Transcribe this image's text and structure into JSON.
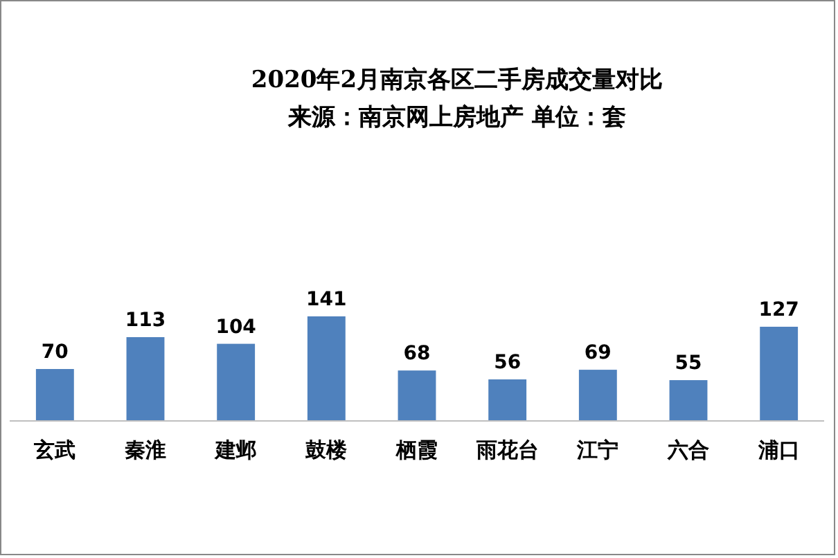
{
  "chart_data": {
    "type": "bar",
    "title": "2020年2月南京各区二手房成交量对比",
    "subtitle": "来源：南京网上房地产 单位：套",
    "categories": [
      "玄武",
      "秦淮",
      "建邺",
      "鼓楼",
      "栖霞",
      "雨花台",
      "江宁",
      "六合",
      "浦口"
    ],
    "values": [
      70,
      113,
      104,
      141,
      68,
      56,
      69,
      55,
      127
    ],
    "color": "#4f81bd",
    "data_labels": true
  }
}
